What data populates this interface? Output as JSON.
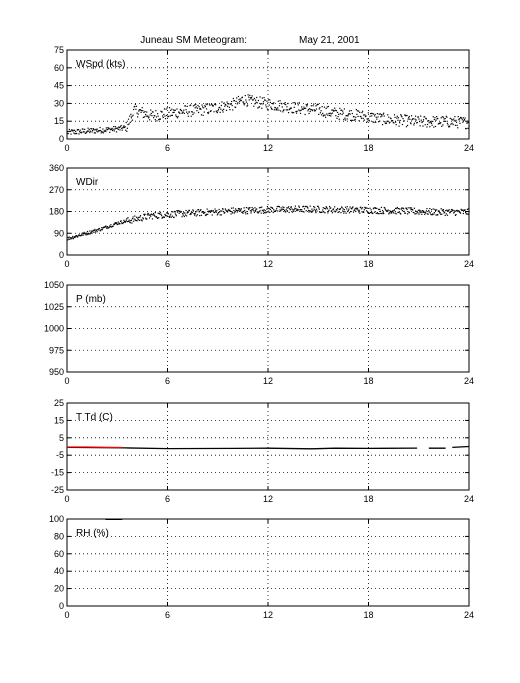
{
  "figure": {
    "title": "Juneau SM Meteogram:",
    "date": "May 21, 2001"
  },
  "chart_data": [
    {
      "type": "scatter",
      "id": "wspd",
      "label": "WSpd (kts)",
      "xlim": [
        0,
        24
      ],
      "ylim": [
        0,
        75
      ],
      "xticks": [
        0,
        6,
        12,
        18,
        24
      ],
      "yticks": [
        0,
        15,
        30,
        45,
        60,
        75
      ],
      "grid": true,
      "colors": {
        "points": "#000000"
      },
      "trend": {
        "x": [
          0,
          1,
          2,
          3,
          3.5,
          4,
          5,
          6,
          7,
          8,
          9,
          10,
          10.5,
          11,
          12,
          13,
          14,
          15,
          16,
          17,
          18,
          19,
          20,
          21,
          22,
          23,
          24
        ],
        "y": [
          6,
          7,
          8,
          9,
          10,
          25,
          20,
          22,
          24,
          25,
          27,
          30,
          34,
          32,
          30,
          28,
          26,
          25,
          22,
          21,
          19,
          17,
          16,
          15,
          15,
          15,
          14
        ]
      },
      "spread": 5
    },
    {
      "type": "scatter",
      "id": "wdir",
      "label": "WDir",
      "xlim": [
        0,
        24
      ],
      "ylim": [
        0,
        360
      ],
      "xticks": [
        0,
        6,
        12,
        18,
        24
      ],
      "yticks": [
        0,
        90,
        180,
        270,
        360
      ],
      "grid": true,
      "colors": {
        "points": "#000000"
      },
      "trend": {
        "x": [
          0,
          1,
          2,
          3,
          4,
          5,
          6,
          8,
          10,
          12,
          14,
          16,
          18,
          20,
          22,
          24
        ],
        "y": [
          70,
          90,
          110,
          135,
          150,
          165,
          170,
          178,
          185,
          190,
          192,
          190,
          188,
          185,
          180,
          180
        ]
      },
      "spread": 14
    },
    {
      "type": "scatter",
      "id": "pres",
      "label": "P (mb)",
      "xlim": [
        0,
        24
      ],
      "ylim": [
        950,
        1050
      ],
      "xticks": [
        0,
        6,
        12,
        18,
        24
      ],
      "yticks": [
        950,
        975,
        1000,
        1025,
        1050
      ],
      "grid": true,
      "colors": {
        "points": "#000000"
      },
      "trend": {
        "x": [],
        "y": []
      },
      "spread": 0
    },
    {
      "type": "line",
      "id": "temp",
      "label": "T Td (C)",
      "xlim": [
        0,
        24
      ],
      "ylim": [
        -25,
        25
      ],
      "xticks": [
        0,
        6,
        12,
        18,
        24
      ],
      "yticks": [
        -25,
        -15,
        -5,
        5,
        15,
        25
      ],
      "grid": true,
      "series": [
        {
          "color": "#000000",
          "segments": [
            {
              "x": [
                0,
                3.5,
                6,
                10,
                12,
                14.6,
                16,
                18,
                20.9
              ],
              "y": [
                -0.5,
                -0.8,
                -1.2,
                -1.1,
                -1.0,
                -1.3,
                -1.0,
                -1.1,
                -0.9
              ]
            },
            {
              "x": [
                21.6,
                22.6
              ],
              "y": [
                -1.0,
                -1.0
              ]
            },
            {
              "x": [
                23.0,
                24
              ],
              "y": [
                -0.5,
                0.0
              ]
            }
          ]
        },
        {
          "color": "#ff0000",
          "segments": [
            {
              "x": [
                0,
                1.1,
                2.5,
                3.3
              ],
              "y": [
                -0.3,
                -0.3,
                -0.5,
                -0.6
              ]
            }
          ]
        }
      ]
    },
    {
      "type": "line",
      "id": "rh",
      "label": "RH (%)",
      "xlim": [
        0,
        24
      ],
      "ylim": [
        0,
        100
      ],
      "xticks": [
        0,
        6,
        12,
        18,
        24
      ],
      "yticks": [
        0,
        20,
        40,
        60,
        80,
        100
      ],
      "grid": true,
      "series": [
        {
          "color": "#000000",
          "segments": [
            {
              "x": [
                2.3,
                3.3
              ],
              "y": [
                99.5,
                99.5
              ]
            }
          ]
        }
      ]
    }
  ]
}
